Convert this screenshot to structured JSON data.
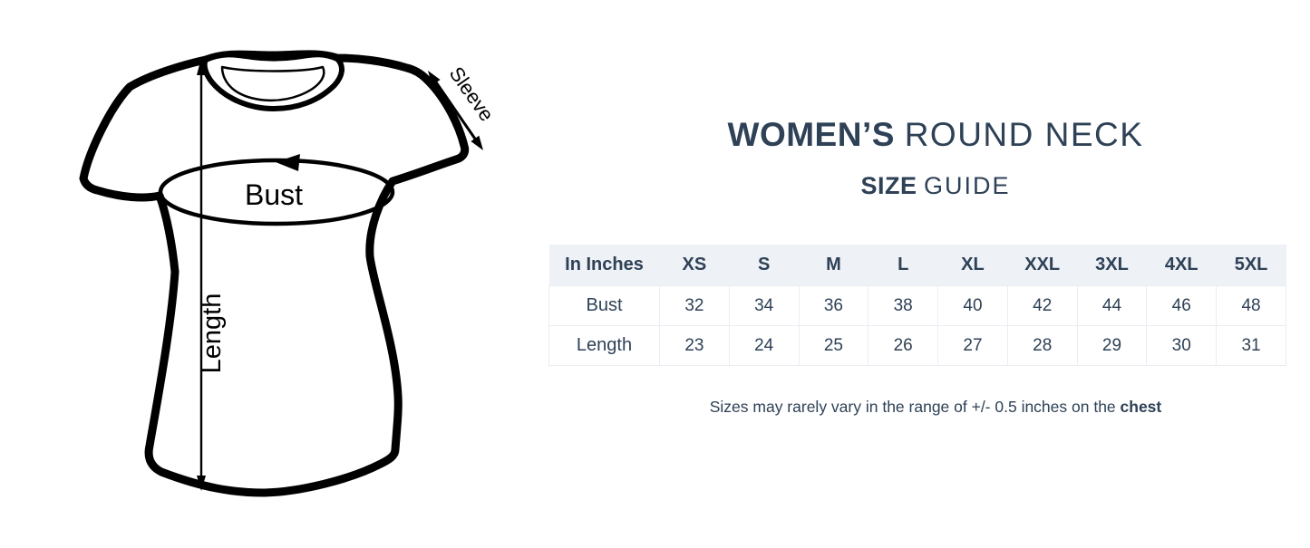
{
  "colors": {
    "navy_text": "#2e4156",
    "table_header_bg": "#eef1f6",
    "table_border": "#e9edf2",
    "drawing_ink": "#000000"
  },
  "diagram": {
    "bust_label": "Bust",
    "length_label": "Length",
    "sleeve_label": "Sleeve"
  },
  "header": {
    "title_bold": "WOMEN’S",
    "title_light": "ROUND NECK",
    "subtitle_bold": "SIZE",
    "subtitle_light": "GUIDE"
  },
  "size_table": {
    "columns": [
      "In Inches",
      "XS",
      "S",
      "M",
      "L",
      "XL",
      "XXL",
      "3XL",
      "4XL",
      "5XL"
    ],
    "rows": [
      {
        "label": "Bust",
        "values": [
          "32",
          "34",
          "36",
          "38",
          "40",
          "42",
          "44",
          "46",
          "48"
        ]
      },
      {
        "label": "Length",
        "values": [
          "23",
          "24",
          "25",
          "26",
          "27",
          "28",
          "29",
          "30",
          "31"
        ]
      }
    ]
  },
  "note": {
    "text": "Sizes may rarely vary in the range of +/- 0.5 inches on the ",
    "bold_word": "chest"
  }
}
